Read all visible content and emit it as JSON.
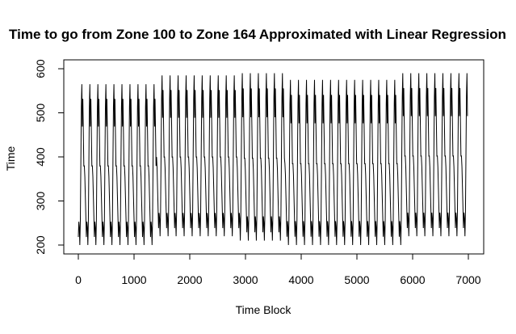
{
  "chart_data": {
    "type": "line",
    "title": "Time to go from Zone 100 to Zone 164 Approximated with Linear Regression",
    "xlabel": "Time Block",
    "ylabel": "Time",
    "xlim": [
      0,
      7000
    ],
    "ylim": [
      200,
      600
    ],
    "x_ticks": [
      0,
      1000,
      2000,
      3000,
      4000,
      5000,
      6000,
      7000
    ],
    "y_ticks": [
      200,
      300,
      400,
      500,
      600
    ],
    "x_tick_labels": [
      "0",
      "1000",
      "2000",
      "3000",
      "4000",
      "5000",
      "6000",
      "7000"
    ],
    "y_tick_labels": [
      "200",
      "300",
      "400",
      "500",
      "600"
    ],
    "grid": false,
    "legend": "none",
    "series": [
      {
        "x_range": [
          0,
          6990
        ],
        "period": 144,
        "segments": [
          {
            "x_start": 0,
            "x_end": 1400,
            "min": 200,
            "max": 565
          },
          {
            "x_start": 1400,
            "x_end": 2900,
            "min": 220,
            "max": 585
          },
          {
            "x_start": 2900,
            "x_end": 3700,
            "min": 210,
            "max": 590
          },
          {
            "x_start": 3700,
            "x_end": 5800,
            "min": 200,
            "max": 575
          },
          {
            "x_start": 5800,
            "x_end": 6990,
            "min": 220,
            "max": 590
          }
        ],
        "color": "#000000"
      }
    ]
  }
}
